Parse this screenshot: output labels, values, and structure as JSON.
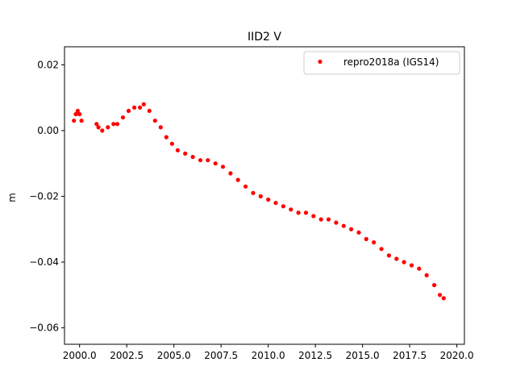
{
  "chart_data": {
    "type": "scatter",
    "title": "IID2 V",
    "xlabel": "",
    "ylabel": "m",
    "xlim": [
      1999.2,
      2020.4
    ],
    "ylim": [
      -0.065,
      0.0255
    ],
    "x_ticks": [
      2000.0,
      2002.5,
      2005.0,
      2007.5,
      2010.0,
      2012.5,
      2015.0,
      2017.5,
      2020.0
    ],
    "x_tick_labels": [
      "2000.0",
      "2002.5",
      "2005.0",
      "2007.5",
      "2010.0",
      "2012.5",
      "2015.0",
      "2017.5",
      "2020.0"
    ],
    "y_ticks": [
      0.02,
      0.0,
      -0.02,
      -0.04,
      -0.06
    ],
    "y_tick_labels": [
      "0.02",
      "0.00",
      "−0.02",
      "−0.04",
      "−0.06"
    ],
    "grid": false,
    "legend_position": "upper-right",
    "marker_color": "#ff0000",
    "series": [
      {
        "name": "repro2018a (IGS14)",
        "marker": "circle",
        "color": "#ff0000",
        "x": [
          1999.7,
          1999.8,
          1999.9,
          2000.0,
          2000.1,
          2000.9,
          2001.0,
          2001.2,
          2001.5,
          2001.8,
          2002.0,
          2002.3,
          2002.6,
          2002.9,
          2003.2,
          2003.4,
          2003.7,
          2004.0,
          2004.3,
          2004.6,
          2004.9,
          2005.2,
          2005.6,
          2006.0,
          2006.4,
          2006.8,
          2007.2,
          2007.6,
          2008.0,
          2008.4,
          2008.8,
          2009.2,
          2009.6,
          2010.0,
          2010.4,
          2010.8,
          2011.2,
          2011.6,
          2012.0,
          2012.4,
          2012.8,
          2013.2,
          2013.6,
          2014.0,
          2014.4,
          2014.8,
          2015.2,
          2015.6,
          2016.0,
          2016.4,
          2016.8,
          2017.2,
          2017.6,
          2018.0,
          2018.4,
          2018.8,
          2019.1,
          2019.3
        ],
        "y": [
          0.003,
          0.005,
          0.006,
          0.005,
          0.003,
          0.002,
          0.001,
          0.0,
          0.001,
          0.002,
          0.002,
          0.004,
          0.006,
          0.007,
          0.007,
          0.008,
          0.006,
          0.003,
          0.001,
          -0.002,
          -0.004,
          -0.006,
          -0.007,
          -0.008,
          -0.009,
          -0.009,
          -0.01,
          -0.011,
          -0.013,
          -0.015,
          -0.017,
          -0.019,
          -0.02,
          -0.021,
          -0.022,
          -0.023,
          -0.024,
          -0.025,
          -0.025,
          -0.026,
          -0.027,
          -0.027,
          -0.028,
          -0.029,
          -0.03,
          -0.031,
          -0.033,
          -0.034,
          -0.036,
          -0.038,
          -0.039,
          -0.04,
          -0.041,
          -0.042,
          -0.044,
          -0.047,
          -0.05,
          -0.051
        ]
      }
    ]
  }
}
